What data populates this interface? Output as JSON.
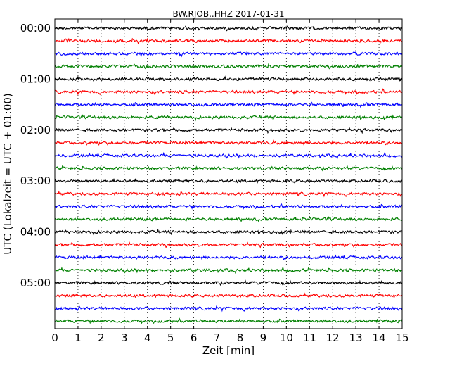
{
  "chart_data": {
    "type": "line",
    "title": "BW.RJOB..HHZ 2017-01-31",
    "xlabel": "Zeit  [min]",
    "ylabel": "UTC (Lokalzeit = UTC + 01:00)",
    "xlim": [
      0,
      15
    ],
    "x_ticks": [
      "0",
      "1",
      "2",
      "3",
      "4",
      "5",
      "6",
      "7",
      "8",
      "9",
      "10",
      "11",
      "12",
      "13",
      "14",
      "15"
    ],
    "y_ticks": [
      "00:00",
      "01:00",
      "02:00",
      "03:00",
      "04:00",
      "05:00"
    ],
    "grid": "vertical dotted",
    "trace_count": 24,
    "trace_interval_min": 15,
    "trace_colors": [
      "#000000",
      "#ff0000",
      "#0000ff",
      "#008000"
    ]
  }
}
